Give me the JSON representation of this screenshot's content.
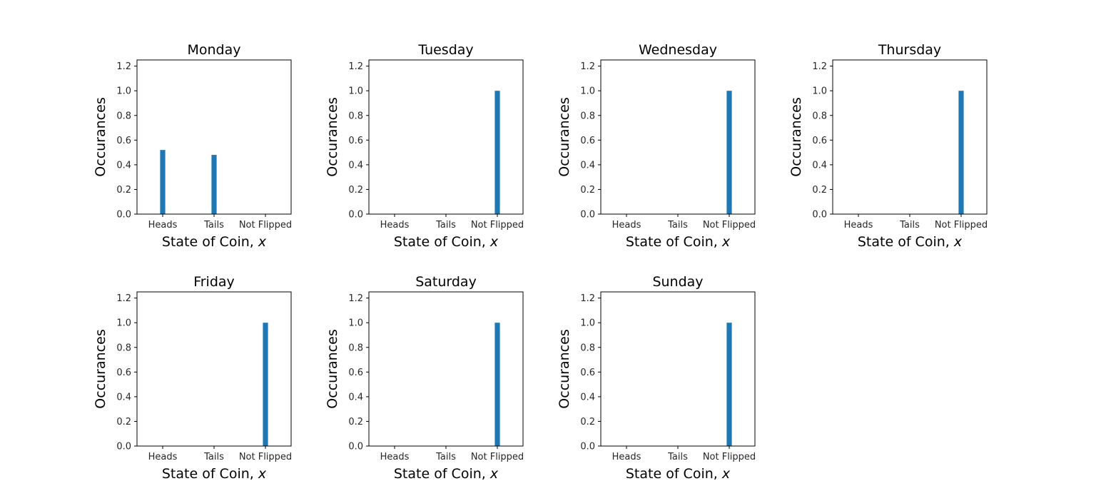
{
  "chart_data": [
    {
      "type": "bar",
      "title": "Monday",
      "categories": [
        "Heads",
        "Tails",
        "Not Flipped"
      ],
      "values": [
        0.52,
        0.48,
        0
      ],
      "xlabel": "State of Coin, x",
      "ylabel": "Occurances",
      "ylim": [
        0,
        1.25
      ],
      "yticks": [
        "0.0",
        "0.2",
        "0.4",
        "0.6",
        "0.8",
        "1.0",
        "1.2"
      ],
      "grid": false
    },
    {
      "type": "bar",
      "title": "Tuesday",
      "categories": [
        "Heads",
        "Tails",
        "Not Flipped"
      ],
      "values": [
        0,
        0,
        1.0
      ],
      "xlabel": "State of Coin, x",
      "ylabel": "Occurances",
      "ylim": [
        0,
        1.25
      ],
      "yticks": [
        "0.0",
        "0.2",
        "0.4",
        "0.6",
        "0.8",
        "1.0",
        "1.2"
      ],
      "grid": false
    },
    {
      "type": "bar",
      "title": "Wednesday",
      "categories": [
        "Heads",
        "Tails",
        "Not Flipped"
      ],
      "values": [
        0,
        0,
        1.0
      ],
      "xlabel": "State of Coin, x",
      "ylabel": "Occurances",
      "ylim": [
        0,
        1.25
      ],
      "yticks": [
        "0.0",
        "0.2",
        "0.4",
        "0.6",
        "0.8",
        "1.0",
        "1.2"
      ],
      "grid": false
    },
    {
      "type": "bar",
      "title": "Thursday",
      "categories": [
        "Heads",
        "Tails",
        "Not Flipped"
      ],
      "values": [
        0,
        0,
        1.0
      ],
      "xlabel": "State of Coin, x",
      "ylabel": "Occurances",
      "ylim": [
        0,
        1.25
      ],
      "yticks": [
        "0.0",
        "0.2",
        "0.4",
        "0.6",
        "0.8",
        "1.0",
        "1.2"
      ],
      "grid": false
    },
    {
      "type": "bar",
      "title": "Friday",
      "categories": [
        "Heads",
        "Tails",
        "Not Flipped"
      ],
      "values": [
        0,
        0,
        1.0
      ],
      "xlabel": "State of Coin, x",
      "ylabel": "Occurances",
      "ylim": [
        0,
        1.25
      ],
      "yticks": [
        "0.0",
        "0.2",
        "0.4",
        "0.6",
        "0.8",
        "1.0",
        "1.2"
      ],
      "grid": false
    },
    {
      "type": "bar",
      "title": "Saturday",
      "categories": [
        "Heads",
        "Tails",
        "Not Flipped"
      ],
      "values": [
        0,
        0,
        1.0
      ],
      "xlabel": "State of Coin, x",
      "ylabel": "Occurances",
      "ylim": [
        0,
        1.25
      ],
      "yticks": [
        "0.0",
        "0.2",
        "0.4",
        "0.6",
        "0.8",
        "1.0",
        "1.2"
      ],
      "grid": false
    },
    {
      "type": "bar",
      "title": "Sunday",
      "categories": [
        "Heads",
        "Tails",
        "Not Flipped"
      ],
      "values": [
        0,
        0,
        1.0
      ],
      "xlabel": "State of Coin, x",
      "ylabel": "Occurances",
      "ylim": [
        0,
        1.25
      ],
      "yticks": [
        "0.0",
        "0.2",
        "0.4",
        "0.6",
        "0.8",
        "1.0",
        "1.2"
      ],
      "grid": false
    }
  ],
  "colors": {
    "bar": "#1f77b4",
    "axis": "#000000"
  }
}
